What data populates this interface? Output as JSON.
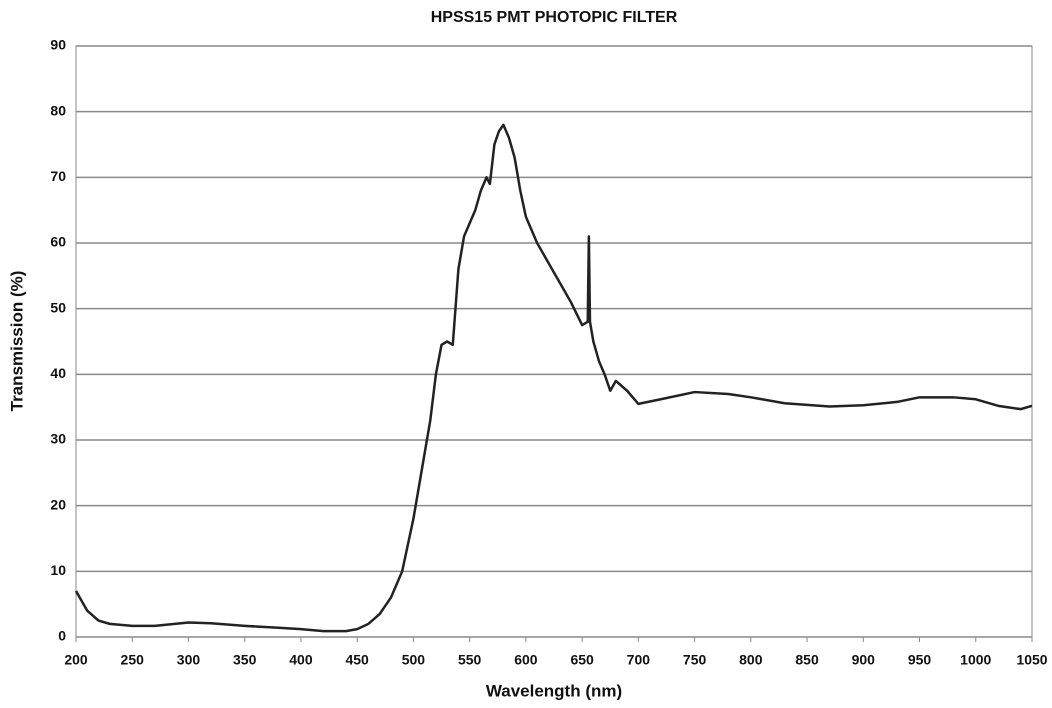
{
  "chart_data": {
    "type": "line",
    "title": "HPSS15 PMT PHOTOPIC FILTER",
    "x_label": "Wavelength (nm)",
    "y_label": "Transmission (%)",
    "xlim": [
      200,
      1050
    ],
    "xticks": [
      200,
      250,
      300,
      350,
      400,
      450,
      500,
      550,
      600,
      650,
      700,
      750,
      800,
      850,
      900,
      950,
      1000,
      1050
    ],
    "ylim": [
      0,
      90
    ],
    "yticks": [
      0,
      10,
      20,
      30,
      40,
      50,
      60,
      70,
      80,
      90
    ],
    "grid": true,
    "x": [
      200,
      210,
      220,
      230,
      250,
      270,
      300,
      320,
      350,
      380,
      400,
      420,
      440,
      450,
      460,
      470,
      480,
      490,
      500,
      510,
      515,
      520,
      525,
      530,
      535,
      540,
      545,
      550,
      555,
      560,
      565,
      568,
      572,
      576,
      580,
      585,
      590,
      595,
      600,
      610,
      620,
      630,
      640,
      650,
      655,
      656,
      657,
      660,
      665,
      670,
      675,
      680,
      690,
      700,
      720,
      750,
      780,
      800,
      830,
      870,
      900,
      930,
      950,
      980,
      1000,
      1020,
      1040,
      1050
    ],
    "series": [
      {
        "color": "#222222",
        "values": [
          7,
          4,
          2.5,
          2,
          1.7,
          1.7,
          2.2,
          2.1,
          1.7,
          1.4,
          1.2,
          0.9,
          0.9,
          1.2,
          2,
          3.5,
          6,
          10,
          18,
          28,
          33,
          40,
          44.5,
          45,
          44.5,
          56,
          61,
          63,
          65,
          68,
          70,
          69,
          75,
          77,
          78,
          76,
          73,
          68,
          64,
          60,
          57,
          54,
          51,
          47.5,
          48,
          61,
          48,
          45,
          42,
          40,
          37.5,
          39,
          37.5,
          35.5,
          36.2,
          37.3,
          37,
          36.5,
          35.6,
          35.1,
          35.3,
          35.8,
          36.5,
          36.5,
          36.2,
          35.2,
          34.7,
          35.2
        ]
      }
    ]
  }
}
